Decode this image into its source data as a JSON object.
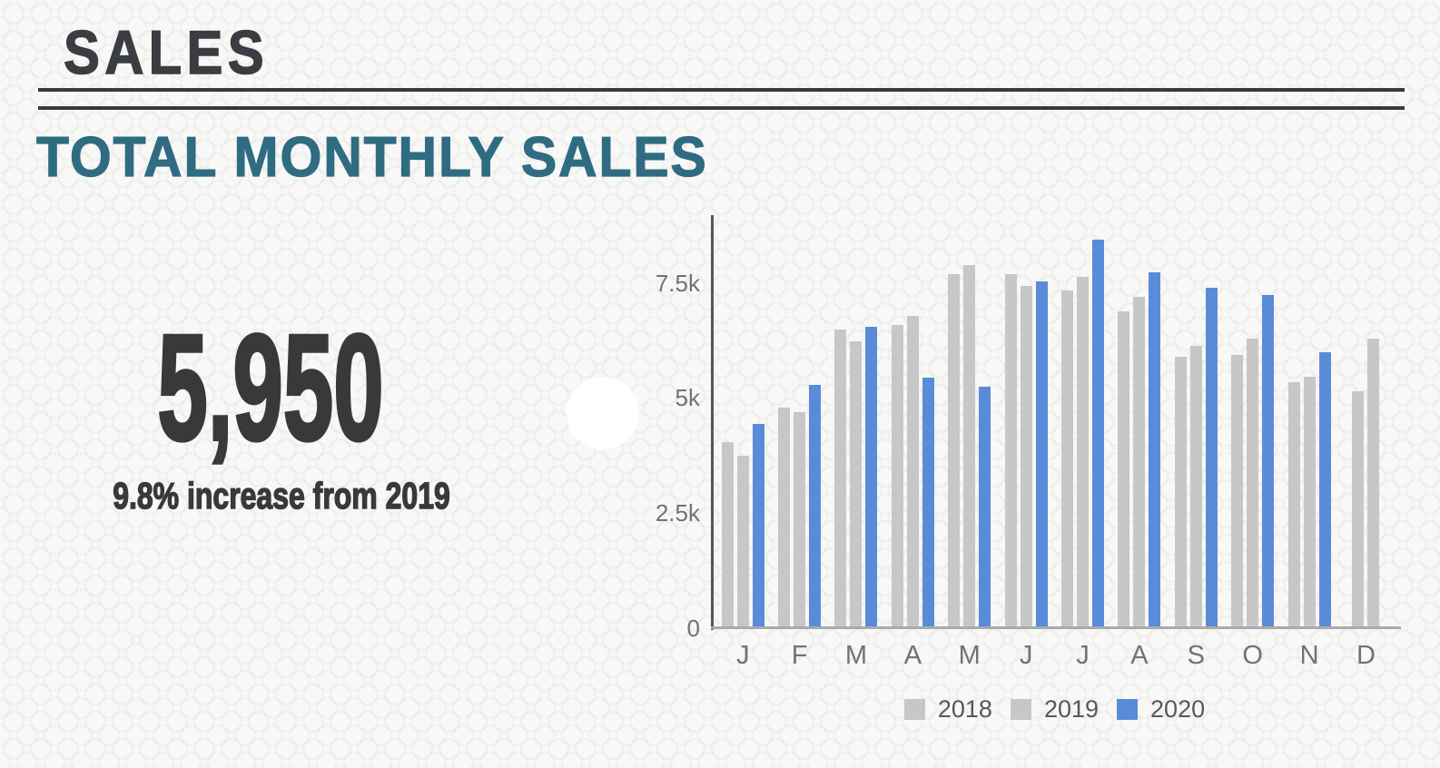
{
  "page": {
    "title": "SALES",
    "subtitle": "TOTAL MONTHLY SALES"
  },
  "stat": {
    "value": "5,950",
    "caption": "9.8% increase from 2019"
  },
  "chart_data": {
    "type": "bar",
    "title": "TOTAL MONTHLY SALES",
    "categories": [
      "J",
      "F",
      "M",
      "A",
      "M",
      "J",
      "J",
      "A",
      "S",
      "O",
      "N",
      "D"
    ],
    "series": [
      {
        "name": "2018",
        "color": "#c7c7c7",
        "values": [
          4000,
          4750,
          6450,
          6550,
          7650,
          7650,
          7300,
          6850,
          5850,
          5900,
          5300,
          5100
        ]
      },
      {
        "name": "2019",
        "color": "#c7c7c7",
        "values": [
          3700,
          4650,
          6200,
          6750,
          7850,
          7400,
          7600,
          7150,
          6100,
          6250,
          5420,
          6250
        ]
      },
      {
        "name": "2020",
        "color": "#5a8bd8",
        "values": [
          4400,
          5250,
          6500,
          5400,
          5200,
          7500,
          8400,
          7700,
          7350,
          7200,
          5950,
          null
        ]
      }
    ],
    "yticks": [
      {
        "label": "7.5k",
        "value": 7500
      },
      {
        "label": "5k",
        "value": 5000
      },
      {
        "label": "2.5k",
        "value": 2500
      },
      {
        "label": "0",
        "value": 0
      }
    ],
    "ylim": [
      0,
      8933
    ],
    "xlabel": "",
    "ylabel": "",
    "grid": false,
    "legend_position": "bottom"
  },
  "colors": {
    "accent_teal": "#2f6c82",
    "heading_dark": "#3a3d42",
    "stat_text": "#38393b",
    "axis_line": "#50555f",
    "baseline": "#a9aaab",
    "tick_text": "#6d737d",
    "legend_text": "#55595f",
    "bar_gray": "#c7c7c7",
    "bar_blue": "#5a8bd8"
  }
}
